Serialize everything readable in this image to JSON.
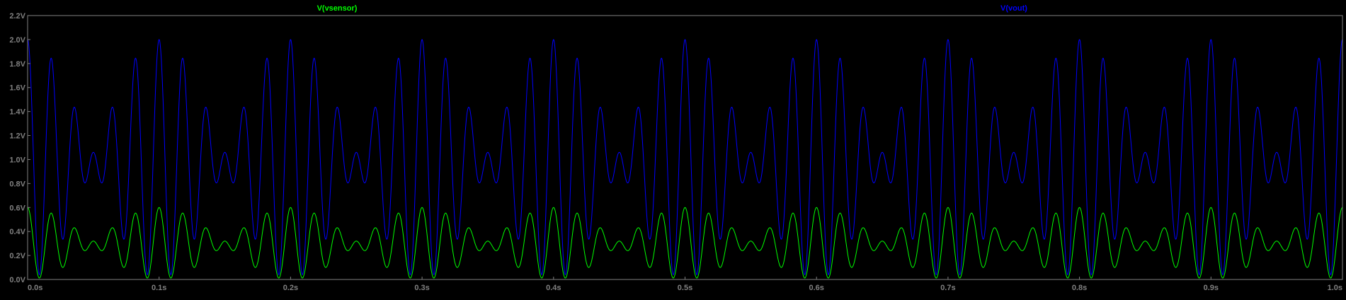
{
  "chart_data": {
    "type": "line",
    "xlim": [
      0.0,
      1.0
    ],
    "ylim": [
      0.0,
      2.2
    ],
    "x_ticks": [
      "0.0s",
      "0.1s",
      "0.2s",
      "0.3s",
      "0.4s",
      "0.5s",
      "0.6s",
      "0.7s",
      "0.8s",
      "0.9s",
      "1.0s"
    ],
    "x_tick_values": [
      0.0,
      0.1,
      0.2,
      0.3,
      0.4,
      0.5,
      0.6,
      0.7,
      0.8,
      0.9,
      1.0
    ],
    "y_ticks": [
      "0.0V",
      "0.2V",
      "0.4V",
      "0.6V",
      "0.8V",
      "1.0V",
      "1.2V",
      "1.4V",
      "1.6V",
      "1.8V",
      "2.0V",
      "2.2V"
    ],
    "y_tick_values": [
      0.0,
      0.2,
      0.4,
      0.6,
      0.8,
      1.0,
      1.2,
      1.4,
      1.6,
      1.8,
      2.0,
      2.2
    ],
    "grid": false,
    "background": "#000000",
    "axis_color": "#808080",
    "series": [
      {
        "name": "V(vsensor)",
        "color": "#00ff00",
        "offset": 0.3,
        "components": [
          {
            "amplitude": 0.16,
            "frequency": 60
          },
          {
            "amplitude": 0.14,
            "frequency": 50
          }
        ],
        "min": 0.0,
        "max": 0.6
      },
      {
        "name": "V(vout)",
        "color": "#0000ff",
        "offset": 1.0,
        "components": [
          {
            "amplitude": 0.53,
            "frequency": 60
          },
          {
            "amplitude": 0.47,
            "frequency": 50
          }
        ],
        "min": 0.0,
        "max": 2.0
      }
    ]
  }
}
